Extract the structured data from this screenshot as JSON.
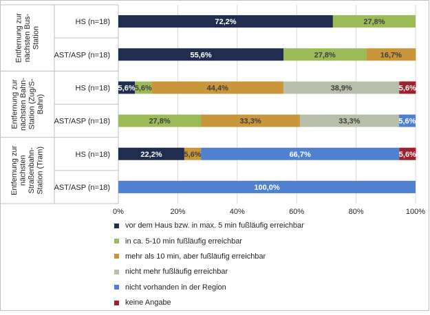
{
  "chart_data": {
    "type": "bar",
    "orientation": "horizontal",
    "stacked": true,
    "percent_stacked": true,
    "groups": [
      {
        "label": "Entfernung zur nächsten Bus-Station",
        "rows": [
          "HS (n=18)",
          "AST/ASP (n=18)"
        ]
      },
      {
        "label": "Entfernung zur nächsten Bahn-Station (Zug/S-Bahn)",
        "rows": [
          "HS (n=18)",
          "AST/ASP (n=18)"
        ]
      },
      {
        "label": "Entfernung zur nächsten Straßenbahn-Station (Tram)",
        "rows": [
          "HS (n=18)",
          "AST/ASP (n=18)"
        ]
      }
    ],
    "categories": [
      "HS (n=18)",
      "AST/ASP (n=18)",
      "HS (n=18)",
      "AST/ASP (n=18)",
      "HS (n=18)",
      "AST/ASP (n=18)"
    ],
    "series": [
      {
        "name": "vor dem Haus bzw. in max. 5 min fußläufig erreichbar",
        "color": "#1f2d4e",
        "values": [
          72.2,
          55.6,
          5.6,
          0,
          22.2,
          0
        ],
        "labels": [
          "72,2%",
          "55,6%",
          "5,6%",
          "",
          "22,2%",
          ""
        ]
      },
      {
        "name": "in ca. 5-10 min fußläufig erreichbar",
        "color": "#9bbb59",
        "values": [
          27.8,
          27.8,
          5.6,
          27.8,
          0,
          0
        ],
        "labels": [
          "27,8%",
          "27,8%",
          "5,6%",
          "27,8%",
          "",
          ""
        ]
      },
      {
        "name": "mehr als 10 min, aber fußläufig erreichbar",
        "color": "#c9963c",
        "values": [
          0,
          16.7,
          44.4,
          33.3,
          5.6,
          0
        ],
        "labels": [
          "",
          "16,7%",
          "44,4%",
          "33,3%",
          "5,6%",
          ""
        ]
      },
      {
        "name": "nicht mehr fußläufig erreichbar",
        "color": "#b8bfa8",
        "values": [
          0,
          0,
          38.9,
          33.3,
          0,
          0
        ],
        "labels": [
          "",
          "",
          "38,9%",
          "33,3%",
          "",
          ""
        ]
      },
      {
        "name": "nicht vorhanden in der Region",
        "color": "#4f81d0",
        "values": [
          0,
          0,
          0,
          5.6,
          66.7,
          100.0
        ],
        "labels": [
          "",
          "",
          "",
          "5,6%",
          "66,7%",
          "100,0%"
        ]
      },
      {
        "name": "keine Angabe",
        "color": "#a0212b",
        "values": [
          0,
          0,
          5.6,
          0,
          5.6,
          0
        ],
        "labels": [
          "",
          "",
          "5,6%",
          "",
          "5,6%",
          ""
        ]
      }
    ],
    "x_ticks": [
      "0%",
      "20%",
      "40%",
      "60%",
      "80%",
      "100%"
    ],
    "xlim": [
      0,
      100
    ],
    "grid": true,
    "legend_position": "bottom"
  }
}
